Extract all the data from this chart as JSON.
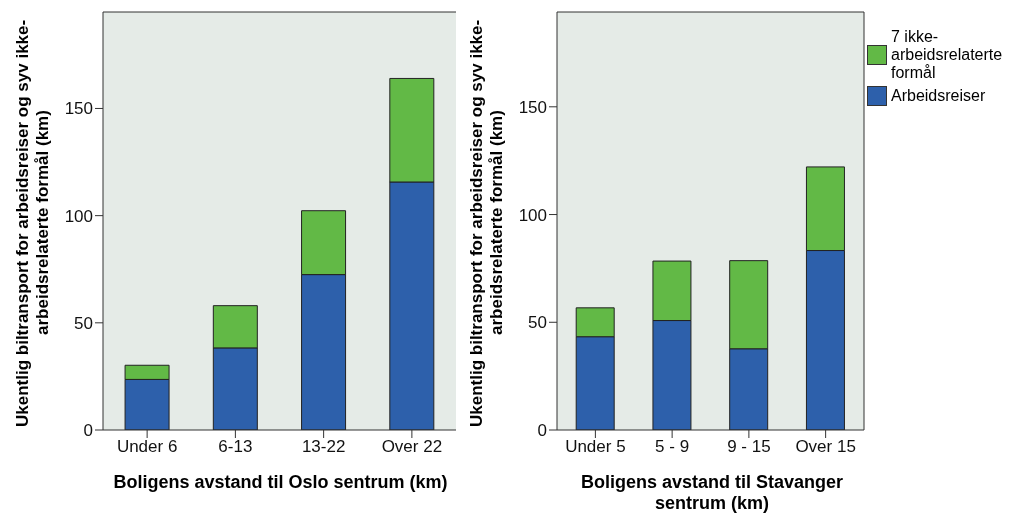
{
  "chart_data": [
    {
      "type": "bar",
      "stacked": true,
      "xlabel": "Boligens avstand til Oslo sentrum (km)",
      "ylabel": "Ukentlig biltransport for arbeidsreiser og syv ikke-arbeidsrelaterte formål (km)",
      "categories": [
        "Under 6",
        "6-13",
        "13-22",
        "Over 22"
      ],
      "series": [
        {
          "color": "#2d60ab",
          "values": [
            23.6,
            38.3,
            72.5,
            115.7
          ]
        },
        {
          "color": "#62b946",
          "values": [
            6.6,
            19.7,
            29.8,
            48.3
          ]
        }
      ],
      "ylim": [
        0,
        195
      ],
      "yticks": [
        0,
        50,
        100,
        150
      ],
      "grid": false,
      "legend": false
    },
    {
      "type": "bar",
      "stacked": true,
      "xlabel": "Boligens avstand til Stavanger sentrum (km)",
      "ylabel": "Ukentlig biltransport for arbeidsreiser og syv ikke-arbeidsrelaterte formål (km)",
      "categories": [
        "Under 5",
        "5 - 9",
        "9 - 15",
        "Over 15"
      ],
      "series": [
        {
          "name": "Arbeidsreiser",
          "color": "#2d60ab",
          "values": [
            43.3,
            50.8,
            37.7,
            83.3
          ]
        },
        {
          "name": "7 ikke-arbeidsrelaterte formål",
          "color": "#62b946",
          "values": [
            13.4,
            27.6,
            40.9,
            38.8
          ]
        }
      ],
      "ylim": [
        0,
        194
      ],
      "yticks": [
        0,
        50,
        100,
        150
      ],
      "grid": false,
      "legend": "right"
    }
  ]
}
